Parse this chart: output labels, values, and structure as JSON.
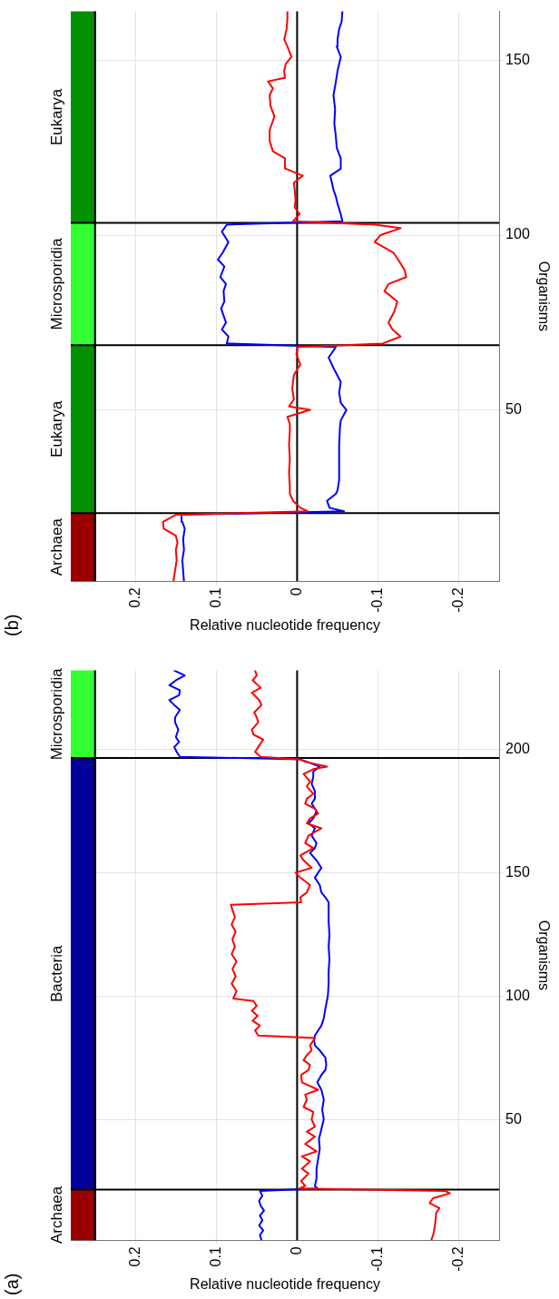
{
  "chart_data": [
    {
      "type": "line",
      "title": "(a)",
      "xlabel": "Relative nucleotide frequency",
      "ylabel": "Organisms",
      "xlim": [
        0.28,
        -0.25
      ],
      "xticks": [
        0.2,
        0.1,
        0,
        -0.1,
        -0.2
      ],
      "ylim": [
        1,
        232
      ],
      "yticks": [
        50,
        100,
        150,
        200
      ],
      "grid": true,
      "series": [
        {
          "color": "#ff0000",
          "values": [
            1,
            4,
            8,
            12,
            14,
            16,
            18,
            20,
            21,
            22,
            23,
            25,
            28,
            30,
            33,
            35,
            37,
            40,
            43,
            45,
            47,
            50,
            53,
            55,
            58,
            60,
            62,
            65,
            68,
            70,
            72,
            74,
            76,
            78,
            80,
            83,
            84,
            86,
            88,
            90,
            92,
            94,
            96,
            98,
            99,
            102,
            105,
            108,
            111,
            114,
            117,
            120,
            123,
            126,
            129,
            132,
            135,
            137,
            138,
            140,
            142,
            145,
            148,
            150,
            152,
            155,
            157,
            160,
            162,
            165,
            168,
            170,
            172,
            174,
            176,
            178,
            180,
            182,
            185,
            187,
            190,
            192,
            193,
            195,
            196,
            197,
            199,
            201,
            204,
            206,
            208,
            211,
            213,
            215,
            218,
            220,
            223,
            225,
            228,
            230,
            232
          ],
          "x": [
            -0.166,
            -0.169,
            -0.171,
            -0.172,
            -0.176,
            -0.164,
            -0.168,
            -0.189,
            -0.183,
            -0.003,
            -0.01,
            -0.005,
            -0.014,
            -0.006,
            -0.016,
            -0.006,
            -0.024,
            -0.01,
            -0.022,
            -0.012,
            -0.022,
            -0.018,
            -0.02,
            -0.008,
            -0.012,
            -0.01,
            -0.026,
            -0.006,
            -0.005,
            -0.014,
            -0.016,
            -0.008,
            -0.012,
            -0.018,
            -0.016,
            -0.022,
            0.048,
            0.052,
            0.046,
            0.055,
            0.049,
            0.056,
            0.05,
            0.054,
            0.079,
            0.075,
            0.081,
            0.076,
            0.08,
            0.075,
            0.081,
            0.077,
            0.08,
            0.076,
            0.081,
            0.077,
            0.08,
            0.082,
            -0.005,
            -0.004,
            -0.012,
            -0.016,
            -0.004,
            0.002,
            -0.018,
            -0.008,
            -0.004,
            -0.02,
            -0.01,
            -0.014,
            -0.03,
            -0.012,
            -0.016,
            -0.026,
            -0.022,
            -0.01,
            -0.012,
            -0.02,
            -0.012,
            -0.016,
            -0.008,
            -0.02,
            -0.037,
            -0.01,
            -0.003,
            0.045,
            0.052,
            0.048,
            0.042,
            0.054,
            0.056,
            0.048,
            0.05,
            0.053,
            0.044,
            0.047,
            0.056,
            0.045,
            0.055,
            0.05,
            0.052
          ]
        },
        {
          "color": "#0000ff",
          "values": [
            1,
            3,
            5,
            7,
            9,
            11,
            13,
            15,
            17,
            19,
            21,
            22,
            23,
            26,
            30,
            34,
            38,
            42,
            46,
            50,
            54,
            58,
            62,
            65,
            68,
            70,
            72,
            75,
            78,
            80,
            82,
            84,
            86,
            88,
            91,
            95,
            100,
            105,
            110,
            115,
            120,
            125,
            130,
            138,
            140,
            142,
            145,
            148,
            150,
            152,
            155,
            158,
            160,
            162,
            165,
            168,
            170,
            172,
            175,
            178,
            180,
            183,
            186,
            189,
            191,
            193,
            195,
            196,
            197,
            199,
            201,
            203,
            205,
            208,
            211,
            213,
            216,
            218,
            220,
            222,
            224,
            226,
            228,
            230,
            232
          ],
          "x": [
            0.044,
            0.046,
            0.042,
            0.047,
            0.043,
            0.046,
            0.041,
            0.045,
            0.047,
            0.043,
            0.046,
            -0.025,
            -0.022,
            -0.024,
            -0.024,
            -0.026,
            -0.028,
            -0.027,
            -0.03,
            -0.033,
            -0.031,
            -0.033,
            -0.03,
            -0.025,
            -0.03,
            -0.035,
            -0.036,
            -0.035,
            -0.028,
            -0.022,
            -0.021,
            -0.022,
            -0.026,
            -0.03,
            -0.033,
            -0.035,
            -0.038,
            -0.039,
            -0.039,
            -0.04,
            -0.039,
            -0.04,
            -0.039,
            -0.039,
            -0.035,
            -0.03,
            -0.028,
            -0.022,
            -0.026,
            -0.03,
            -0.024,
            -0.016,
            -0.022,
            -0.024,
            -0.018,
            -0.022,
            -0.014,
            -0.02,
            -0.024,
            -0.018,
            -0.022,
            -0.022,
            -0.018,
            -0.02,
            -0.02,
            -0.028,
            -0.012,
            -0.003,
            0.145,
            0.149,
            0.152,
            0.146,
            0.15,
            0.147,
            0.151,
            0.151,
            0.145,
            0.152,
            0.158,
            0.146,
            0.145,
            0.158,
            0.15,
            0.139,
            0.152
          ]
        }
      ],
      "ref_lines": [
        {
          "axis": "x",
          "value": 0.25,
          "color": "#000000"
        },
        {
          "axis": "x",
          "value": 0,
          "color": "#000000"
        },
        {
          "axis": "y",
          "value": 21.5,
          "color": "#000000"
        },
        {
          "axis": "y",
          "value": 196.5,
          "color": "#000000"
        }
      ],
      "bands": [
        {
          "axis": "y",
          "from": 1,
          "to": 21.5,
          "label": "Archaea",
          "color": "#990000"
        },
        {
          "axis": "y",
          "from": 21.5,
          "to": 196.5,
          "label": "Bacteria",
          "color": "#000099"
        },
        {
          "axis": "y",
          "from": 196.5,
          "to": 232,
          "label": "Microsporidia",
          "color": "#33ff33"
        }
      ]
    },
    {
      "type": "line",
      "title": "(b)",
      "xlabel": "Relative nucleotide frequency",
      "ylabel": "Organisms",
      "xlim": [
        0.28,
        -0.25
      ],
      "xticks": [
        0.2,
        0.1,
        0,
        -0.1,
        -0.2
      ],
      "ylim": [
        1,
        164
      ],
      "yticks": [
        50,
        100,
        150
      ],
      "grid": true,
      "series": [
        {
          "color": "#ff0000",
          "values": [
            1,
            4,
            7,
            10,
            12,
            14,
            16,
            18,
            20,
            21,
            22,
            24,
            26,
            28,
            32,
            36,
            40,
            44,
            46,
            48,
            50,
            51,
            53,
            56,
            60,
            63,
            66,
            68,
            69,
            71,
            73,
            75,
            78,
            81,
            84,
            86,
            88,
            90,
            93,
            95,
            98,
            100,
            102,
            103,
            104,
            106,
            108,
            110,
            113,
            115,
            117,
            119,
            122,
            124,
            127,
            130,
            134,
            137,
            140,
            142,
            144,
            145,
            147,
            149,
            151,
            154,
            156,
            159,
            162,
            164
          ],
          "x": [
            0.153,
            0.151,
            0.149,
            0.15,
            0.148,
            0.15,
            0.165,
            0.166,
            0.15,
            -0.013,
            -0.004,
            0.005,
            0.009,
            0.009,
            0.01,
            0.009,
            0.01,
            0.009,
            0.009,
            0.012,
            -0.016,
            0.01,
            0.004,
            0.006,
            0.004,
            -0.004,
            0.001,
            -0.001,
            -0.106,
            -0.128,
            -0.118,
            -0.113,
            -0.12,
            -0.124,
            -0.108,
            -0.113,
            -0.135,
            -0.133,
            -0.125,
            -0.119,
            -0.096,
            -0.103,
            -0.128,
            -0.096,
            0.005,
            -0.003,
            0.003,
            0.002,
            0.003,
            0.004,
            -0.007,
            0.014,
            0.015,
            0.03,
            0.034,
            0.034,
            0.028,
            0.033,
            0.034,
            0.03,
            0.036,
            0.015,
            0.016,
            0.014,
            0.007,
            0.012,
            0.016,
            0.013,
            0.012,
            0.012
          ]
        },
        {
          "color": "#0000ff",
          "values": [
            1,
            4,
            7,
            10,
            13,
            16,
            18,
            20,
            21,
            22,
            24,
            26,
            27,
            30,
            40,
            45,
            47,
            50,
            52,
            55,
            58,
            62,
            65,
            68,
            69,
            71,
            73,
            75,
            77,
            79,
            81,
            84,
            86,
            88,
            91,
            93,
            95,
            98,
            101,
            103,
            104,
            106,
            109,
            111,
            113,
            115,
            117,
            119,
            122,
            125,
            128,
            132,
            136,
            140,
            144,
            147,
            151,
            154,
            156,
            159,
            161,
            164
          ],
          "x": [
            0.14,
            0.141,
            0.142,
            0.14,
            0.141,
            0.139,
            0.142,
            0.143,
            -0.058,
            -0.04,
            -0.037,
            -0.048,
            -0.05,
            -0.052,
            -0.052,
            -0.053,
            -0.054,
            -0.061,
            -0.054,
            -0.052,
            -0.054,
            -0.045,
            -0.039,
            -0.048,
            0.087,
            0.085,
            0.093,
            0.088,
            0.091,
            0.094,
            0.09,
            0.091,
            0.088,
            0.095,
            0.09,
            0.098,
            0.092,
            0.085,
            0.093,
            0.087,
            -0.056,
            -0.054,
            -0.05,
            -0.048,
            -0.045,
            -0.043,
            -0.041,
            -0.054,
            -0.054,
            -0.049,
            -0.048,
            -0.046,
            -0.047,
            -0.045,
            -0.048,
            -0.05,
            -0.054,
            -0.049,
            -0.05,
            -0.052,
            -0.055,
            -0.056
          ]
        }
      ],
      "ref_lines": [
        {
          "axis": "x",
          "value": 0.25,
          "color": "#000000"
        },
        {
          "axis": "x",
          "value": 0,
          "color": "#000000"
        },
        {
          "axis": "y",
          "value": 20.5,
          "color": "#000000"
        },
        {
          "axis": "y",
          "value": 68.5,
          "color": "#000000"
        },
        {
          "axis": "y",
          "value": 103.5,
          "color": "#000000"
        }
      ],
      "bands": [
        {
          "axis": "y",
          "from": 1,
          "to": 20.5,
          "label": "Archaea",
          "color": "#990000"
        },
        {
          "axis": "y",
          "from": 20.5,
          "to": 68.5,
          "label": "Eukarya",
          "color": "#009000"
        },
        {
          "axis": "y",
          "from": 68.5,
          "to": 103.5,
          "label": "Microsporidia",
          "color": "#33ff33"
        },
        {
          "axis": "y",
          "from": 103.5,
          "to": 164,
          "label": "Eukarya",
          "color": "#009000"
        }
      ]
    }
  ]
}
